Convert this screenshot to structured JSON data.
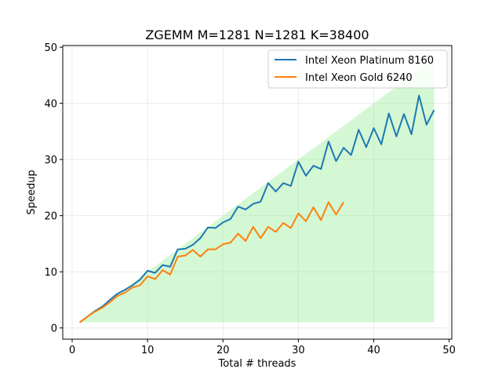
{
  "chart_data": {
    "type": "line",
    "title": "ZGEMM M=1281 N=1281 K=38400",
    "xlabel": "Total # threads",
    "ylabel": "Speedup",
    "xlim": [
      -1.25,
      50.35
    ],
    "ylim": [
      -2.0,
      50.3
    ],
    "xticks": [
      0,
      10,
      20,
      30,
      40,
      50
    ],
    "yticks": [
      0,
      10,
      20,
      30,
      40,
      50
    ],
    "grid": true,
    "legend_position": "top-right",
    "ideal_region": {
      "x_start": 1,
      "x_end": 48,
      "color": "#90ee90"
    },
    "series": [
      {
        "name": "Intel Xeon Platinum 8160",
        "color": "#1f77b4",
        "x": [
          1,
          2,
          3,
          4,
          5,
          6,
          7,
          8,
          9,
          10,
          11,
          12,
          13,
          14,
          15,
          16,
          17,
          18,
          19,
          20,
          21,
          22,
          23,
          24,
          25,
          26,
          27,
          28,
          29,
          30,
          31,
          32,
          33,
          34,
          35,
          36,
          37,
          38,
          39,
          40,
          41,
          42,
          43,
          44,
          45,
          46,
          47,
          48
        ],
        "values": [
          1,
          2,
          3,
          3.8,
          5,
          6.1,
          6.8,
          7.6,
          8.6,
          10.2,
          9.8,
          11.2,
          10.9,
          14,
          14.1,
          14.8,
          16,
          17.9,
          17.8,
          18.8,
          19.4,
          21.6,
          21.1,
          22.1,
          22.5,
          25.8,
          24.3,
          25.8,
          25.3,
          29.6,
          27.1,
          28.9,
          28.3,
          33.2,
          29.7,
          32.1,
          30.8,
          35.3,
          32.2,
          35.6,
          32.7,
          38.2,
          34.1,
          38.1,
          34.5,
          41.4,
          36.2,
          38.8
        ]
      },
      {
        "name": "Intel Xeon Gold 6240",
        "color": "#ff7f0e",
        "x": [
          1,
          2,
          3,
          4,
          5,
          6,
          7,
          8,
          9,
          10,
          11,
          12,
          13,
          14,
          15,
          16,
          17,
          18,
          19,
          20,
          21,
          22,
          23,
          24,
          25,
          26,
          27,
          28,
          29,
          30,
          31,
          32,
          33,
          34,
          35,
          36
        ],
        "values": [
          1,
          2,
          2.9,
          3.6,
          4.6,
          5.7,
          6.3,
          7.2,
          7.6,
          9.2,
          8.7,
          10.3,
          9.5,
          12.7,
          12.9,
          13.9,
          12.7,
          14,
          14,
          14.9,
          15.2,
          16.8,
          15.5,
          18,
          16,
          18,
          17.1,
          18.7,
          17.8,
          20.4,
          19,
          21.5,
          19.2,
          22.4,
          20.2,
          22.4
        ]
      }
    ]
  }
}
